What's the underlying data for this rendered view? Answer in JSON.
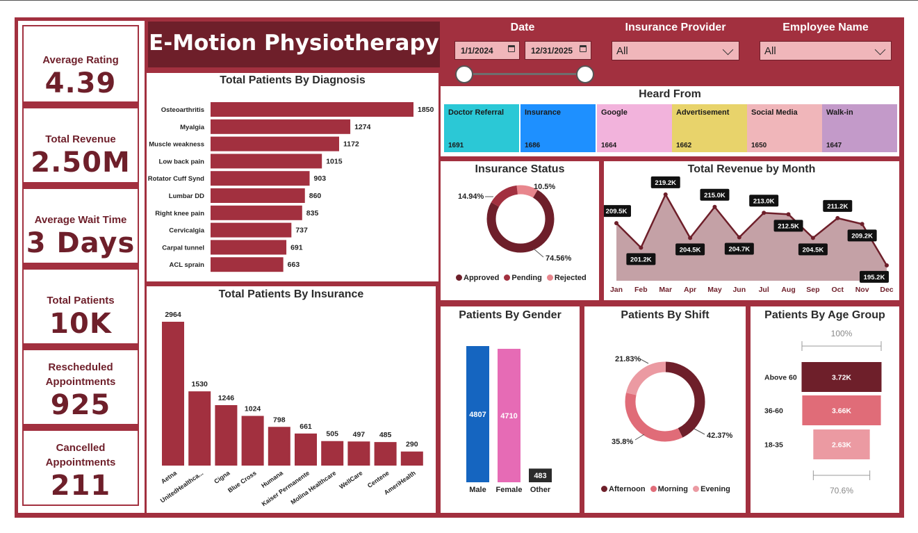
{
  "app_title": "E-Motion Physiotherapy",
  "kpis": [
    {
      "label": "Average Rating",
      "value": "4.39"
    },
    {
      "label": "Total Revenue",
      "value": "2.50M"
    },
    {
      "label": "Average Wait Time",
      "value": "3 Days"
    },
    {
      "label": "Total Patients",
      "value": "10K"
    },
    {
      "label": "Rescheduled Appointments",
      "value": "925"
    },
    {
      "label": "Cancelled Appointments",
      "value": "211"
    }
  ],
  "filters": {
    "date_label": "Date",
    "date_start": "1/1/2024",
    "date_end": "12/31/2025",
    "insurance_label": "Insurance Provider",
    "insurance_value": "All",
    "employee_label": "Employee Name",
    "employee_value": "All"
  },
  "colors": {
    "brand": "#a2303f",
    "dark": "#6e1f2a",
    "bar": "#a2303f"
  },
  "chart_data": [
    {
      "id": "diagnosis",
      "type": "bar",
      "orientation": "horizontal",
      "title": "Total Patients By Diagnosis",
      "categories": [
        "Osteoarthritis",
        "Myalgia",
        "Muscle weakness",
        "Low back pain",
        "Rotator Cuff Synd",
        "Lumbar DD",
        "Right knee pain",
        "Cervicalgia",
        "Carpal tunnel",
        "ACL sprain"
      ],
      "values": [
        1850,
        1274,
        1172,
        1015,
        903,
        860,
        835,
        737,
        691,
        663
      ]
    },
    {
      "id": "insurance",
      "type": "bar",
      "title": "Total Patients By Insurance",
      "categories": [
        "Aetna",
        "UnitedHealthca...",
        "Cigna",
        "Blue Cross",
        "Humana",
        "Kaiser Permanente",
        "Molina Healthcare",
        "WellCare",
        "Centene",
        "AmeriHealth"
      ],
      "values": [
        2964,
        1530,
        1246,
        1024,
        798,
        661,
        505,
        497,
        485,
        290
      ]
    },
    {
      "id": "heard_from",
      "type": "table",
      "title": "Heard From",
      "categories": [
        "Doctor Referral",
        "Insurance",
        "Google",
        "Advertisement",
        "Social Media",
        "Walk-in"
      ],
      "values": [
        1691,
        1686,
        1664,
        1662,
        1650,
        1647
      ],
      "colors": [
        "#2bc8d6",
        "#1e90ff",
        "#f2b3dc",
        "#e8d36b",
        "#f0b6ba",
        "#c39ac9"
      ]
    },
    {
      "id": "insurance_status",
      "type": "pie",
      "title": "Insurance Status",
      "categories": [
        "Approved",
        "Pending",
        "Rejected"
      ],
      "values": [
        74.56,
        14.94,
        10.5
      ],
      "labels": [
        "74.56%",
        "14.94%",
        "10.5%"
      ],
      "colors": [
        "#6e1f2a",
        "#a2303f",
        "#e8868d"
      ]
    },
    {
      "id": "revenue_month",
      "type": "area",
      "title": "Total Revenue by Month",
      "categories": [
        "Jan",
        "Feb",
        "Mar",
        "Apr",
        "May",
        "Jun",
        "Jul",
        "Aug",
        "Sep",
        "Oct",
        "Nov",
        "Dec"
      ],
      "values": [
        209.5,
        201.2,
        219.2,
        204.5,
        215.0,
        204.7,
        213.0,
        212.5,
        204.5,
        211.2,
        209.2,
        195.2
      ],
      "labels": [
        "209.5K",
        "201.2K",
        "219.2K",
        "204.5K",
        "215.0K",
        "204.7K",
        "213.0K",
        "212.5K",
        "204.5K",
        "211.2K",
        "209.2K",
        "195.2K"
      ]
    },
    {
      "id": "gender",
      "type": "bar",
      "title": "Patients By Gender",
      "categories": [
        "Male",
        "Female",
        "Other"
      ],
      "values": [
        4807,
        4710,
        483
      ],
      "colors": [
        "#1565c0",
        "#e66bb5",
        "#2b2b2b"
      ]
    },
    {
      "id": "shift",
      "type": "pie",
      "title": "Patients By Shift",
      "categories": [
        "Afternoon",
        "Morning",
        "Evening"
      ],
      "values": [
        42.37,
        35.8,
        21.83
      ],
      "labels": [
        "42.37%",
        "35.8%",
        "21.83%"
      ],
      "colors": [
        "#6e1f2a",
        "#e06c78",
        "#eb9aa2"
      ]
    },
    {
      "id": "age_group",
      "type": "bar",
      "orientation": "horizontal",
      "title": "Patients By Age Group",
      "categories": [
        "Above 60",
        "36-60",
        "18-35"
      ],
      "values": [
        3.72,
        3.66,
        2.63
      ],
      "labels": [
        "3.72K",
        "3.66K",
        "2.63K"
      ],
      "top_label": "100%",
      "bottom_label": "70.6%",
      "colors": [
        "#6e1f2a",
        "#e06c78",
        "#eb9aa2"
      ]
    }
  ]
}
